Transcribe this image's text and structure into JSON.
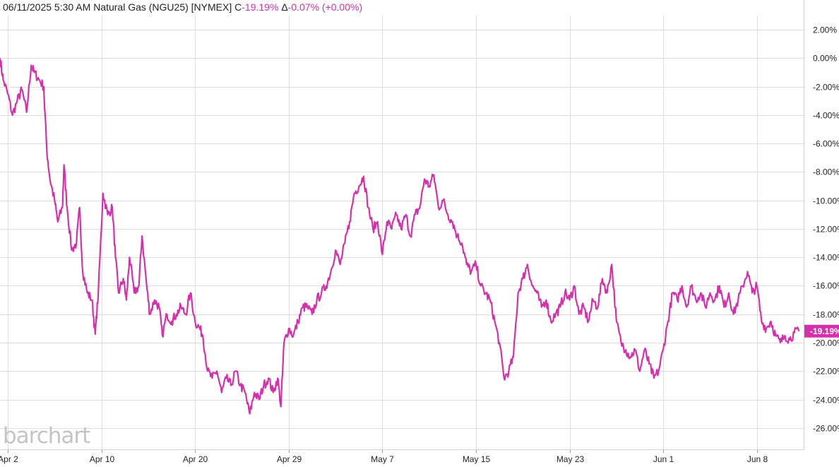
{
  "header": {
    "datetime": "06/11/2025  5:30 AM",
    "instrument": "Natural Gas (NGU25) [NYMEX]",
    "change_prefix": "C",
    "change_value": "-19.19%",
    "delta_prefix": "Δ",
    "delta_value": "-0.07% (+0.00%)"
  },
  "watermark": "barchart",
  "colors": {
    "line": "#d62fae",
    "grid": "#dcdcdc",
    "axis_text": "#222222",
    "badge_text": "#ffffff"
  },
  "chart_data": {
    "type": "line",
    "title": "",
    "xlabel": "",
    "ylabel": "",
    "ylim": [
      -27.5,
      3.0
    ],
    "grid": true,
    "y_ticks": [
      2,
      0,
      -2,
      -4,
      -6,
      -8,
      -10,
      -12,
      -14,
      -16,
      -18,
      -20,
      -22,
      -24,
      -26
    ],
    "y_tick_labels": [
      "2.00%",
      "0.00%",
      "-2.00%",
      "-4.00%",
      "-6.00%",
      "-8.00%",
      "-10.00%",
      "-12.00%",
      "-14.00%",
      "-16.00%",
      "-18.00%",
      "-20.00%",
      "-22.00%",
      "-24.00%",
      "-26.00%"
    ],
    "x_ticks": [
      {
        "label": "Apr 2",
        "x": 0.5
      },
      {
        "label": "Apr 10",
        "x": 6.5
      },
      {
        "label": "Apr 20",
        "x": 12.5
      },
      {
        "label": "Apr 29",
        "x": 18.5
      },
      {
        "label": "May 7",
        "x": 24.5
      },
      {
        "label": "May 15",
        "x": 30.5
      },
      {
        "label": "May 23",
        "x": 36.5
      },
      {
        "label": "Jun 1",
        "x": 42.5
      },
      {
        "label": "Jun 8",
        "x": 48.5
      }
    ],
    "xlim": [
      0,
      51.5
    ],
    "current_value_label": "-19.19%",
    "current_value": -19.19,
    "series": [
      {
        "points": [
          [
            0,
            0.0
          ],
          [
            0.2,
            -1.5
          ],
          [
            0.5,
            -2.5
          ],
          [
            0.8,
            -4.0
          ],
          [
            1.1,
            -3.0
          ],
          [
            1.4,
            -2.2
          ],
          [
            1.7,
            -3.8
          ],
          [
            2.0,
            -0.5
          ],
          [
            2.2,
            -1.0
          ],
          [
            2.5,
            -1.5
          ],
          [
            2.8,
            -2.0
          ],
          [
            3.0,
            -6.5
          ],
          [
            3.2,
            -8.5
          ],
          [
            3.5,
            -10.0
          ],
          [
            3.7,
            -11.5
          ],
          [
            4.0,
            -10.5
          ],
          [
            4.1,
            -7.5
          ],
          [
            4.3,
            -10.5
          ],
          [
            4.6,
            -13.5
          ],
          [
            4.9,
            -13.0
          ],
          [
            5.1,
            -10.5
          ],
          [
            5.3,
            -15.0
          ],
          [
            5.6,
            -16.5
          ],
          [
            5.9,
            -17.0
          ],
          [
            6.1,
            -19.4
          ],
          [
            6.3,
            -16.5
          ],
          [
            6.6,
            -9.5
          ],
          [
            6.9,
            -11.0
          ],
          [
            7.2,
            -10.5
          ],
          [
            7.4,
            -14.0
          ],
          [
            7.6,
            -16.5
          ],
          [
            7.9,
            -15.5
          ],
          [
            8.1,
            -17.0
          ],
          [
            8.3,
            -14.0
          ],
          [
            8.6,
            -16.5
          ],
          [
            8.9,
            -16.0
          ],
          [
            9.1,
            -12.5
          ],
          [
            9.4,
            -16.0
          ],
          [
            9.6,
            -18.0
          ],
          [
            9.9,
            -17.0
          ],
          [
            10.2,
            -17.5
          ],
          [
            10.4,
            -19.5
          ],
          [
            10.7,
            -18.0
          ],
          [
            11.0,
            -18.5
          ],
          [
            11.3,
            -18.0
          ],
          [
            11.6,
            -17.5
          ],
          [
            11.9,
            -18.0
          ],
          [
            12.2,
            -16.5
          ],
          [
            12.5,
            -18.5
          ],
          [
            12.8,
            -19.0
          ],
          [
            13.0,
            -19.5
          ],
          [
            13.3,
            -22.0
          ],
          [
            13.6,
            -22.5
          ],
          [
            13.9,
            -22.0
          ],
          [
            14.2,
            -23.5
          ],
          [
            14.5,
            -22.5
          ],
          [
            14.8,
            -23.0
          ],
          [
            15.1,
            -22.0
          ],
          [
            15.4,
            -23.0
          ],
          [
            15.7,
            -23.5
          ],
          [
            16.0,
            -25.0
          ],
          [
            16.3,
            -23.5
          ],
          [
            16.6,
            -24.0
          ],
          [
            16.9,
            -23.0
          ],
          [
            17.2,
            -22.5
          ],
          [
            17.5,
            -23.5
          ],
          [
            17.8,
            -22.5
          ],
          [
            18.0,
            -24.5
          ],
          [
            18.2,
            -20.0
          ],
          [
            18.5,
            -19.0
          ],
          [
            18.8,
            -19.5
          ],
          [
            19.1,
            -18.5
          ],
          [
            19.4,
            -17.5
          ],
          [
            19.7,
            -17.5
          ],
          [
            20.0,
            -18.0
          ],
          [
            20.3,
            -17.0
          ],
          [
            20.6,
            -16.5
          ],
          [
            20.9,
            -16.0
          ],
          [
            21.2,
            -15.0
          ],
          [
            21.5,
            -13.5
          ],
          [
            21.8,
            -14.5
          ],
          [
            22.1,
            -13.0
          ],
          [
            22.4,
            -11.5
          ],
          [
            22.7,
            -9.5
          ],
          [
            23.0,
            -9.0
          ],
          [
            23.3,
            -8.3
          ],
          [
            23.6,
            -10.5
          ],
          [
            23.9,
            -12.0
          ],
          [
            24.2,
            -11.5
          ],
          [
            24.5,
            -13.8
          ],
          [
            24.8,
            -11.5
          ],
          [
            25.1,
            -12.0
          ],
          [
            25.4,
            -11.0
          ],
          [
            25.7,
            -12.0
          ],
          [
            26.0,
            -11.0
          ],
          [
            26.3,
            -12.5
          ],
          [
            26.6,
            -11.0
          ],
          [
            26.9,
            -10.5
          ],
          [
            27.2,
            -8.5
          ],
          [
            27.5,
            -9.0
          ],
          [
            27.8,
            -8.2
          ],
          [
            28.1,
            -10.5
          ],
          [
            28.4,
            -10.0
          ],
          [
            28.7,
            -11.0
          ],
          [
            29.0,
            -11.5
          ],
          [
            29.3,
            -12.5
          ],
          [
            29.6,
            -13.0
          ],
          [
            29.9,
            -14.5
          ],
          [
            30.2,
            -15.0
          ],
          [
            30.5,
            -14.5
          ],
          [
            30.8,
            -16.0
          ],
          [
            31.1,
            -16.5
          ],
          [
            31.4,
            -17.0
          ],
          [
            31.7,
            -18.5
          ],
          [
            32.0,
            -20.0
          ],
          [
            32.3,
            -22.5
          ],
          [
            32.6,
            -22.0
          ],
          [
            32.9,
            -21.0
          ],
          [
            33.2,
            -16.5
          ],
          [
            33.5,
            -15.5
          ],
          [
            33.8,
            -14.5
          ],
          [
            34.1,
            -16.0
          ],
          [
            34.4,
            -16.5
          ],
          [
            34.7,
            -17.5
          ],
          [
            35.0,
            -17.0
          ],
          [
            35.3,
            -18.5
          ],
          [
            35.6,
            -18.0
          ],
          [
            35.9,
            -17.5
          ],
          [
            36.2,
            -16.5
          ],
          [
            36.5,
            -17.0
          ],
          [
            36.8,
            -16.0
          ],
          [
            37.1,
            -18.0
          ],
          [
            37.4,
            -17.5
          ],
          [
            37.7,
            -18.5
          ],
          [
            38.0,
            -17.0
          ],
          [
            38.3,
            -17.5
          ],
          [
            38.6,
            -15.5
          ],
          [
            38.9,
            -16.5
          ],
          [
            39.2,
            -14.5
          ],
          [
            39.5,
            -18.5
          ],
          [
            39.8,
            -20.0
          ],
          [
            40.1,
            -20.5
          ],
          [
            40.4,
            -21.0
          ],
          [
            40.7,
            -20.5
          ],
          [
            41.0,
            -22.0
          ],
          [
            41.3,
            -20.5
          ],
          [
            41.6,
            -21.5
          ],
          [
            41.9,
            -22.5
          ],
          [
            42.2,
            -22.0
          ],
          [
            42.5,
            -20.5
          ],
          [
            42.8,
            -18.5
          ],
          [
            43.1,
            -16.5
          ],
          [
            43.4,
            -17.0
          ],
          [
            43.7,
            -16.0
          ],
          [
            44.0,
            -17.5
          ],
          [
            44.3,
            -16.0
          ],
          [
            44.6,
            -17.0
          ],
          [
            44.9,
            -16.5
          ],
          [
            45.2,
            -17.5
          ],
          [
            45.5,
            -16.5
          ],
          [
            45.8,
            -17.0
          ],
          [
            46.1,
            -16.0
          ],
          [
            46.4,
            -17.5
          ],
          [
            46.7,
            -16.5
          ],
          [
            47.0,
            -18.0
          ],
          [
            47.3,
            -17.0
          ],
          [
            47.6,
            -16.0
          ],
          [
            47.9,
            -15.0
          ],
          [
            48.2,
            -16.5
          ],
          [
            48.5,
            -16.0
          ],
          [
            48.8,
            -18.5
          ],
          [
            49.1,
            -19.0
          ],
          [
            49.4,
            -18.5
          ],
          [
            49.7,
            -19.5
          ],
          [
            50.0,
            -20.0
          ],
          [
            50.3,
            -19.5
          ],
          [
            50.6,
            -19.8
          ],
          [
            50.9,
            -19.3
          ],
          [
            51.2,
            -19.19
          ]
        ]
      }
    ]
  }
}
